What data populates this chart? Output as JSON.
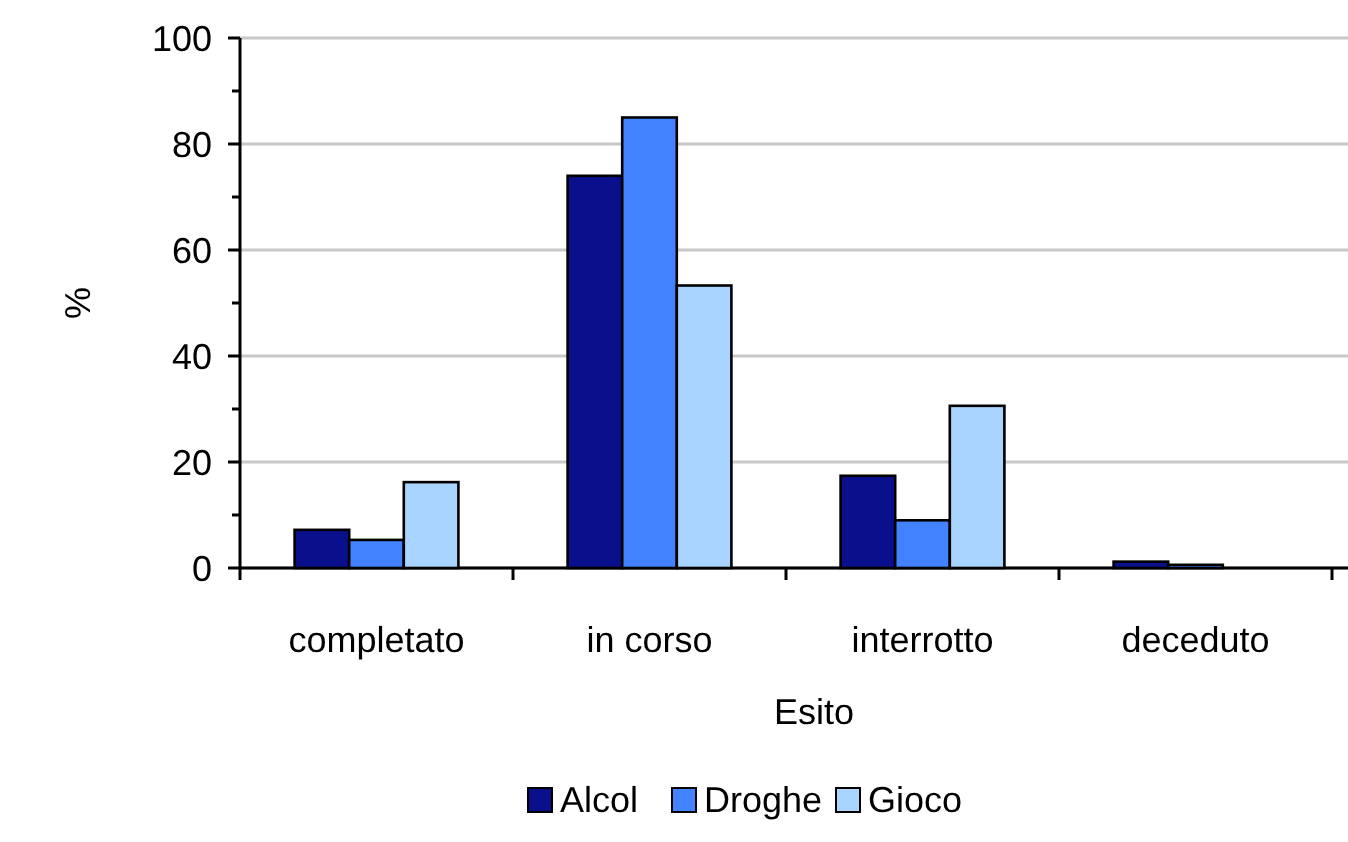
{
  "chart_data": {
    "type": "bar",
    "xlabel": "Esito",
    "ylabel": "%",
    "categories": [
      "completato",
      "in corso",
      "interrotto",
      "deceduto"
    ],
    "series": [
      {
        "name": "Alcol",
        "color": "#0a0f8c",
        "values": [
          7.2,
          74,
          17.4,
          1.2
        ]
      },
      {
        "name": "Droghe",
        "color": "#4282ff",
        "values": [
          5.3,
          85,
          9,
          0.6
        ]
      },
      {
        "name": "Gioco",
        "color": "#a8d4ff",
        "values": [
          16.2,
          53.3,
          30.6,
          0
        ]
      }
    ],
    "ylim": [
      0,
      100
    ],
    "yticks": [
      0,
      20,
      40,
      60,
      80,
      100
    ],
    "grid": "y",
    "legend": "bottom"
  }
}
